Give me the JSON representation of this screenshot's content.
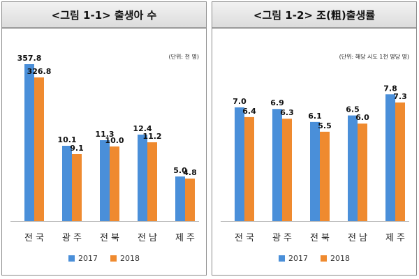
{
  "colors": {
    "series_2017": "#4a8fd9",
    "series_2018": "#ef8a2f"
  },
  "chart_data": [
    {
      "type": "bar",
      "title": "<그림 1-1> 출생아 수",
      "unit_note": "(단위: 천 명)",
      "categories": [
        "전국",
        "광주",
        "전북",
        "전남",
        "제주"
      ],
      "series": [
        {
          "name": "2017",
          "values": [
            357.8,
            10.1,
            11.3,
            12.4,
            5.0
          ],
          "labels": [
            "357.8",
            "10.1",
            "11.3",
            "12.4",
            "5.0"
          ]
        },
        {
          "name": "2018",
          "values": [
            326.8,
            9.1,
            10.0,
            11.2,
            4.8
          ],
          "labels": [
            "326.8",
            "9.1",
            "10.0",
            "11.2",
            "4.8"
          ]
        }
      ],
      "legend_position": "bottom"
    },
    {
      "type": "bar",
      "title": "<그림 1-2> 조(粗)출생률",
      "unit_note": "(단위: 해당 시도 1천 명당 명)",
      "categories": [
        "전국",
        "광주",
        "전북",
        "전남",
        "제주"
      ],
      "series": [
        {
          "name": "2017",
          "values": [
            7.0,
            6.9,
            6.1,
            6.5,
            7.8
          ],
          "labels": [
            "7.0",
            "6.9",
            "6.1",
            "6.5",
            "7.8"
          ]
        },
        {
          "name": "2018",
          "values": [
            6.4,
            6.3,
            5.5,
            6.0,
            7.3
          ],
          "labels": [
            "6.4",
            "6.3",
            "5.5",
            "6.0",
            "7.3"
          ]
        }
      ],
      "legend_position": "bottom"
    }
  ]
}
